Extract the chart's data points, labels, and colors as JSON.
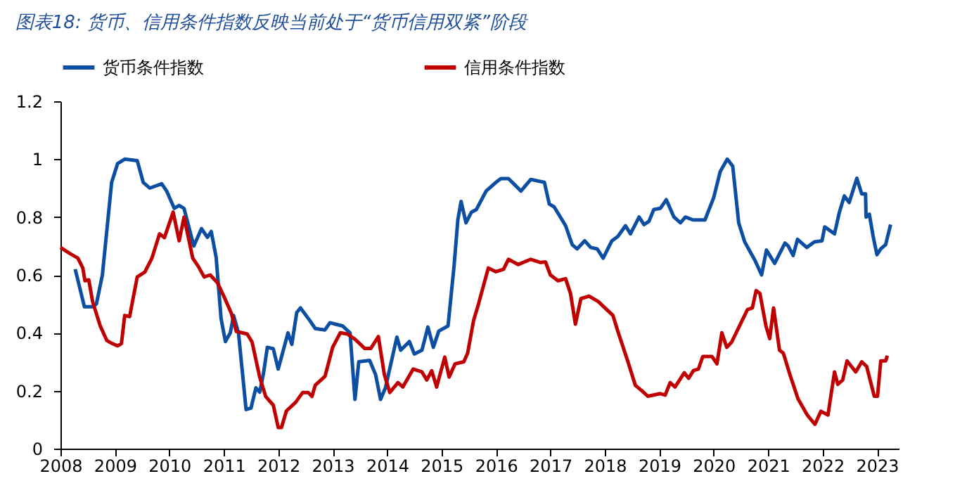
{
  "chart_data": {
    "type": "line",
    "title": "图表18: 货币、信用条件指数反映当前处于“货币信用双紧”阶段",
    "legend": "top",
    "grid": false,
    "marker": "none",
    "line_style": "solid",
    "xlim": [
      2008,
      2023.4
    ],
    "xticks": [
      2008,
      2009,
      2010,
      2011,
      2012,
      2013,
      2014,
      2015,
      2016,
      2017,
      2018,
      2019,
      2020,
      2021,
      2022,
      2023
    ],
    "ylim": [
      0,
      1.2
    ],
    "yticks": [
      0,
      0.2,
      0.4,
      0.6,
      0.8,
      1,
      1.2
    ],
    "series": [
      {
        "name": "货币条件指数",
        "color": "#0b4ea2",
        "x": [
          2008.27,
          2008.44,
          2008.59,
          2008.66,
          2008.77,
          2008.94,
          2009.05,
          2009.18,
          2009.41,
          2009.52,
          2009.64,
          2009.86,
          2009.95,
          2010.09,
          2010.18,
          2010.27,
          2010.45,
          2010.59,
          2010.7,
          2010.77,
          2010.86,
          2010.95,
          2011.03,
          2011.12,
          2011.18,
          2011.27,
          2011.41,
          2011.5,
          2011.59,
          2011.66,
          2011.73,
          2011.8,
          2011.91,
          2012.0,
          2012.18,
          2012.25,
          2012.34,
          2012.41,
          2012.59,
          2012.68,
          2012.86,
          2012.95,
          2013.05,
          2013.18,
          2013.32,
          2013.41,
          2013.48,
          2013.68,
          2013.79,
          2013.88,
          2013.97,
          2014.18,
          2014.25,
          2014.41,
          2014.5,
          2014.64,
          2014.75,
          2014.85,
          2014.95,
          2015.12,
          2015.23,
          2015.3,
          2015.36,
          2015.45,
          2015.55,
          2015.64,
          2015.82,
          2016.0,
          2016.09,
          2016.23,
          2016.46,
          2016.64,
          2016.89,
          2016.98,
          2017.07,
          2017.28,
          2017.4,
          2017.49,
          2017.63,
          2017.74,
          2017.86,
          2017.97,
          2018.13,
          2018.24,
          2018.38,
          2018.47,
          2018.63,
          2018.72,
          2018.81,
          2018.9,
          2019.02,
          2019.13,
          2019.27,
          2019.39,
          2019.48,
          2019.62,
          2019.84,
          2020.0,
          2020.12,
          2020.25,
          2020.35,
          2020.46,
          2020.57,
          2020.76,
          2020.88,
          2020.97,
          2021.12,
          2021.31,
          2021.37,
          2021.46,
          2021.54,
          2021.71,
          2021.85,
          2021.99,
          2022.04,
          2022.22,
          2022.31,
          2022.4,
          2022.49,
          2022.63,
          2022.72,
          2022.79,
          2022.8,
          2022.86,
          2022.93,
          2023.0,
          2023.07,
          2023.16,
          2023.25
        ],
        "values": [
          0.62,
          0.49,
          0.49,
          0.5,
          0.6,
          0.92,
          0.985,
          1.0,
          0.995,
          0.92,
          0.9,
          0.915,
          0.89,
          0.83,
          0.84,
          0.83,
          0.7,
          0.76,
          0.73,
          0.75,
          0.66,
          0.45,
          0.37,
          0.4,
          0.46,
          0.4,
          0.135,
          0.14,
          0.21,
          0.195,
          0.26,
          0.35,
          0.345,
          0.275,
          0.4,
          0.36,
          0.47,
          0.486,
          0.44,
          0.415,
          0.41,
          0.435,
          0.43,
          0.424,
          0.4,
          0.17,
          0.3,
          0.305,
          0.255,
          0.17,
          0.21,
          0.385,
          0.34,
          0.37,
          0.327,
          0.34,
          0.42,
          0.35,
          0.406,
          0.424,
          0.63,
          0.79,
          0.854,
          0.78,
          0.817,
          0.826,
          0.89,
          0.92,
          0.933,
          0.933,
          0.89,
          0.93,
          0.92,
          0.845,
          0.835,
          0.77,
          0.705,
          0.69,
          0.718,
          0.695,
          0.69,
          0.658,
          0.718,
          0.733,
          0.77,
          0.742,
          0.8,
          0.774,
          0.785,
          0.826,
          0.83,
          0.86,
          0.8,
          0.78,
          0.8,
          0.79,
          0.79,
          0.867,
          0.957,
          1.0,
          0.976,
          0.78,
          0.714,
          0.65,
          0.6,
          0.686,
          0.64,
          0.71,
          0.7,
          0.667,
          0.723,
          0.695,
          0.714,
          0.718,
          0.766,
          0.742,
          0.817,
          0.873,
          0.85,
          0.934,
          0.88,
          0.88,
          0.8,
          0.81,
          0.733,
          0.67,
          0.69,
          0.705,
          0.774
        ]
      },
      {
        "name": "信用条件指数",
        "color": "#c00000",
        "x": [
          2008.0,
          2008.18,
          2008.32,
          2008.41,
          2008.45,
          2008.52,
          2008.59,
          2008.73,
          2008.85,
          2008.95,
          2009.05,
          2009.12,
          2009.18,
          2009.27,
          2009.41,
          2009.55,
          2009.68,
          2009.82,
          2009.91,
          2010.07,
          2010.18,
          2010.27,
          2010.43,
          2010.53,
          2010.64,
          2010.75,
          2010.88,
          2011.0,
          2011.14,
          2011.23,
          2011.43,
          2011.52,
          2011.66,
          2011.77,
          2011.91,
          2012.0,
          2012.06,
          2012.15,
          2012.32,
          2012.45,
          2012.55,
          2012.62,
          2012.68,
          2012.86,
          2013.0,
          2013.14,
          2013.27,
          2013.41,
          2013.59,
          2013.7,
          2013.84,
          2013.95,
          2014.05,
          2014.2,
          2014.29,
          2014.48,
          2014.64,
          2014.73,
          2014.82,
          2014.91,
          2015.06,
          2015.14,
          2015.25,
          2015.41,
          2015.48,
          2015.59,
          2015.68,
          2015.86,
          2016.0,
          2016.14,
          2016.23,
          2016.41,
          2016.64,
          2016.82,
          2016.91,
          2017.0,
          2017.14,
          2017.28,
          2017.37,
          2017.46,
          2017.56,
          2017.71,
          2017.88,
          2018.15,
          2018.24,
          2018.42,
          2018.56,
          2018.68,
          2018.79,
          2019.02,
          2019.11,
          2019.2,
          2019.29,
          2019.46,
          2019.54,
          2019.63,
          2019.72,
          2019.8,
          2019.97,
          2020.06,
          2020.15,
          2020.24,
          2020.33,
          2020.62,
          2020.71,
          2020.78,
          2020.85,
          2020.96,
          2021.03,
          2021.1,
          2021.21,
          2021.28,
          2021.4,
          2021.55,
          2021.72,
          2021.86,
          2021.97,
          2022.1,
          2022.22,
          2022.28,
          2022.37,
          2022.45,
          2022.61,
          2022.72,
          2022.81,
          2022.95,
          2023.01,
          2023.07,
          2023.16,
          2023.19
        ],
        "values": [
          0.695,
          0.673,
          0.658,
          0.624,
          0.58,
          0.583,
          0.508,
          0.424,
          0.374,
          0.363,
          0.355,
          0.363,
          0.46,
          0.456,
          0.593,
          0.61,
          0.658,
          0.742,
          0.729,
          0.817,
          0.718,
          0.8,
          0.658,
          0.63,
          0.593,
          0.6,
          0.574,
          0.527,
          0.467,
          0.405,
          0.396,
          0.368,
          0.247,
          0.18,
          0.15,
          0.073,
          0.073,
          0.13,
          0.16,
          0.194,
          0.194,
          0.18,
          0.219,
          0.25,
          0.35,
          0.4,
          0.396,
          0.378,
          0.346,
          0.346,
          0.387,
          0.256,
          0.194,
          0.228,
          0.213,
          0.275,
          0.265,
          0.237,
          0.269,
          0.213,
          0.316,
          0.247,
          0.293,
          0.3,
          0.33,
          0.443,
          0.5,
          0.624,
          0.611,
          0.62,
          0.654,
          0.636,
          0.654,
          0.643,
          0.645,
          0.6,
          0.58,
          0.587,
          0.536,
          0.43,
          0.518,
          0.527,
          0.508,
          0.46,
          0.405,
          0.303,
          0.219,
          0.2,
          0.181,
          0.19,
          0.185,
          0.228,
          0.213,
          0.262,
          0.243,
          0.27,
          0.275,
          0.318,
          0.318,
          0.293,
          0.4,
          0.35,
          0.368,
          0.48,
          0.486,
          0.546,
          0.536,
          0.424,
          0.38,
          0.486,
          0.34,
          0.33,
          0.256,
          0.172,
          0.116,
          0.084,
          0.129,
          0.116,
          0.265,
          0.222,
          0.237,
          0.303,
          0.265,
          0.3,
          0.284,
          0.181,
          0.181,
          0.303,
          0.303,
          0.321
        ]
      }
    ]
  }
}
